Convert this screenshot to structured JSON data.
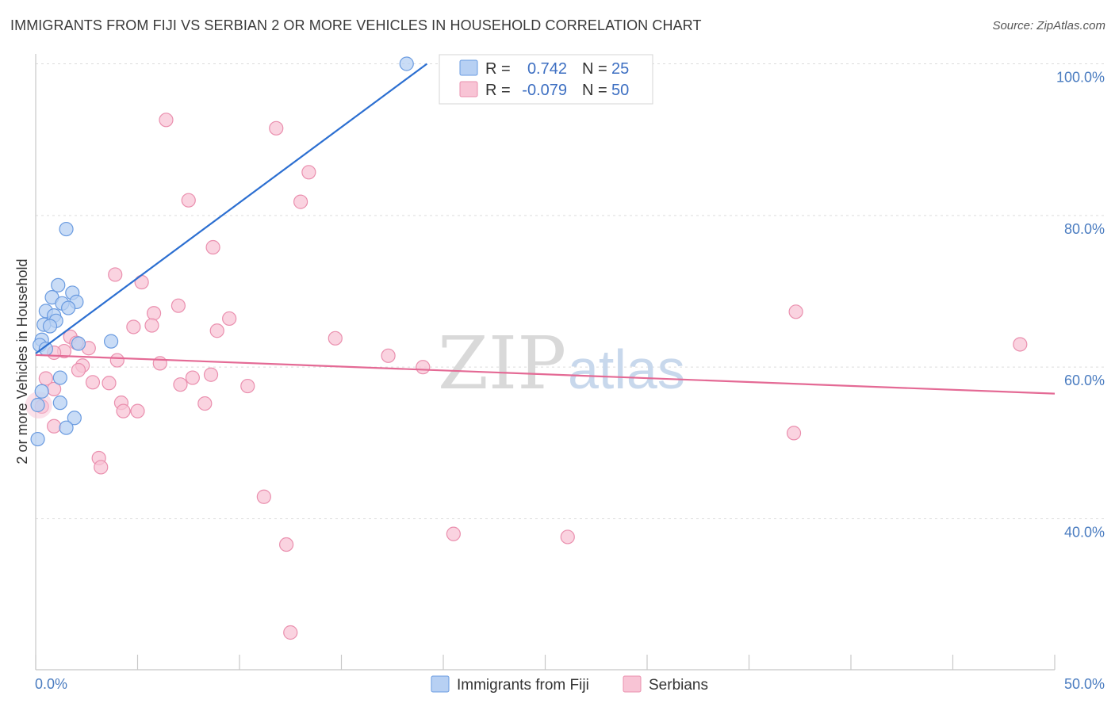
{
  "title": "IMMIGRANTS FROM FIJI VS SERBIAN 2 OR MORE VEHICLES IN HOUSEHOLD CORRELATION CHART",
  "source": "Source: ZipAtlas.com",
  "colors": {
    "fiji": "#6a9be0",
    "fiji_fill": "#b7d0f3",
    "fiji_line": "#2c6fd1",
    "serbian": "#ea8fae",
    "serbian_fill": "#f8c4d5",
    "serbian_line": "#e46a95"
  },
  "legend": {
    "rows": [
      {
        "r_label": "R =",
        "r_value": "0.742",
        "n_label": "N =",
        "n_value": "25"
      },
      {
        "r_label": "R =",
        "r_value": "-0.079",
        "n_label": "N =",
        "n_value": "50"
      }
    ]
  },
  "watermark": {
    "zip": "ZIP",
    "atlas": "atlas"
  },
  "chart_data": {
    "type": "scatter",
    "title": "IMMIGRANTS FROM FIJI VS SERBIAN 2 OR MORE VEHICLES IN HOUSEHOLD CORRELATION CHART",
    "xlabel": "",
    "ylabel": "2 or more Vehicles in Household",
    "xlim": [
      0,
      50
    ],
    "ylim": [
      20,
      103
    ],
    "x_tick_labels": [
      "0.0%",
      "50.0%"
    ],
    "y_ticks": [
      40,
      60,
      80,
      100
    ],
    "y_tick_labels": [
      "40.0%",
      "60.0%",
      "80.0%",
      "100.0%"
    ],
    "grid": true,
    "series": [
      {
        "name": "Immigrants from Fiji",
        "r": 0.742,
        "n": 25,
        "points": [
          [
            18.2,
            100.0
          ],
          [
            1.5,
            78.2
          ],
          [
            1.1,
            70.8
          ],
          [
            1.8,
            69.8
          ],
          [
            0.8,
            69.2
          ],
          [
            1.3,
            68.4
          ],
          [
            2.0,
            68.6
          ],
          [
            1.6,
            67.8
          ],
          [
            0.5,
            67.4
          ],
          [
            0.9,
            66.8
          ],
          [
            1.0,
            66.1
          ],
          [
            0.4,
            65.6
          ],
          [
            0.7,
            65.4
          ],
          [
            0.3,
            63.6
          ],
          [
            2.1,
            63.1
          ],
          [
            3.7,
            63.4
          ],
          [
            0.2,
            62.9
          ],
          [
            0.5,
            62.4
          ],
          [
            1.2,
            58.6
          ],
          [
            1.2,
            55.3
          ],
          [
            1.9,
            53.3
          ],
          [
            1.5,
            52.0
          ],
          [
            0.1,
            50.5
          ],
          [
            0.1,
            55.0
          ],
          [
            0.3,
            56.8
          ]
        ],
        "trend": {
          "x": [
            0.0,
            19.2
          ],
          "y": [
            61.8,
            100.0
          ]
        }
      },
      {
        "name": "Serbians",
        "r": -0.079,
        "n": 50,
        "points": [
          [
            6.4,
            92.6
          ],
          [
            11.8,
            91.5
          ],
          [
            13.4,
            85.7
          ],
          [
            7.5,
            82.0
          ],
          [
            13.0,
            81.8
          ],
          [
            8.7,
            75.8
          ],
          [
            3.9,
            72.2
          ],
          [
            5.2,
            71.2
          ],
          [
            7.0,
            68.1
          ],
          [
            5.8,
            67.1
          ],
          [
            9.5,
            66.4
          ],
          [
            4.8,
            65.3
          ],
          [
            5.7,
            65.5
          ],
          [
            8.9,
            64.8
          ],
          [
            1.7,
            64.0
          ],
          [
            14.7,
            63.8
          ],
          [
            2.0,
            63.2
          ],
          [
            2.6,
            62.5
          ],
          [
            1.4,
            62.1
          ],
          [
            0.9,
            61.9
          ],
          [
            17.3,
            61.5
          ],
          [
            4.0,
            60.9
          ],
          [
            6.1,
            60.5
          ],
          [
            2.3,
            60.2
          ],
          [
            2.1,
            59.6
          ],
          [
            19.0,
            60.0
          ],
          [
            0.5,
            58.5
          ],
          [
            7.7,
            58.6
          ],
          [
            8.6,
            59.0
          ],
          [
            2.8,
            58.0
          ],
          [
            3.6,
            57.9
          ],
          [
            7.1,
            57.7
          ],
          [
            10.4,
            57.5
          ],
          [
            0.9,
            57.1
          ],
          [
            4.2,
            55.3
          ],
          [
            8.3,
            55.2
          ],
          [
            4.3,
            54.2
          ],
          [
            5.0,
            54.2
          ],
          [
            0.3,
            54.8
          ],
          [
            0.9,
            52.2
          ],
          [
            37.2,
            51.3
          ],
          [
            3.1,
            48.0
          ],
          [
            3.2,
            46.8
          ],
          [
            11.2,
            42.9
          ],
          [
            12.3,
            36.6
          ],
          [
            20.5,
            38.0
          ],
          [
            26.1,
            37.6
          ],
          [
            12.5,
            25.0
          ],
          [
            37.3,
            67.3
          ],
          [
            48.3,
            63.0
          ]
        ],
        "trend": {
          "x": [
            0.0,
            50.0
          ],
          "y": [
            61.6,
            56.5
          ]
        }
      }
    ]
  }
}
